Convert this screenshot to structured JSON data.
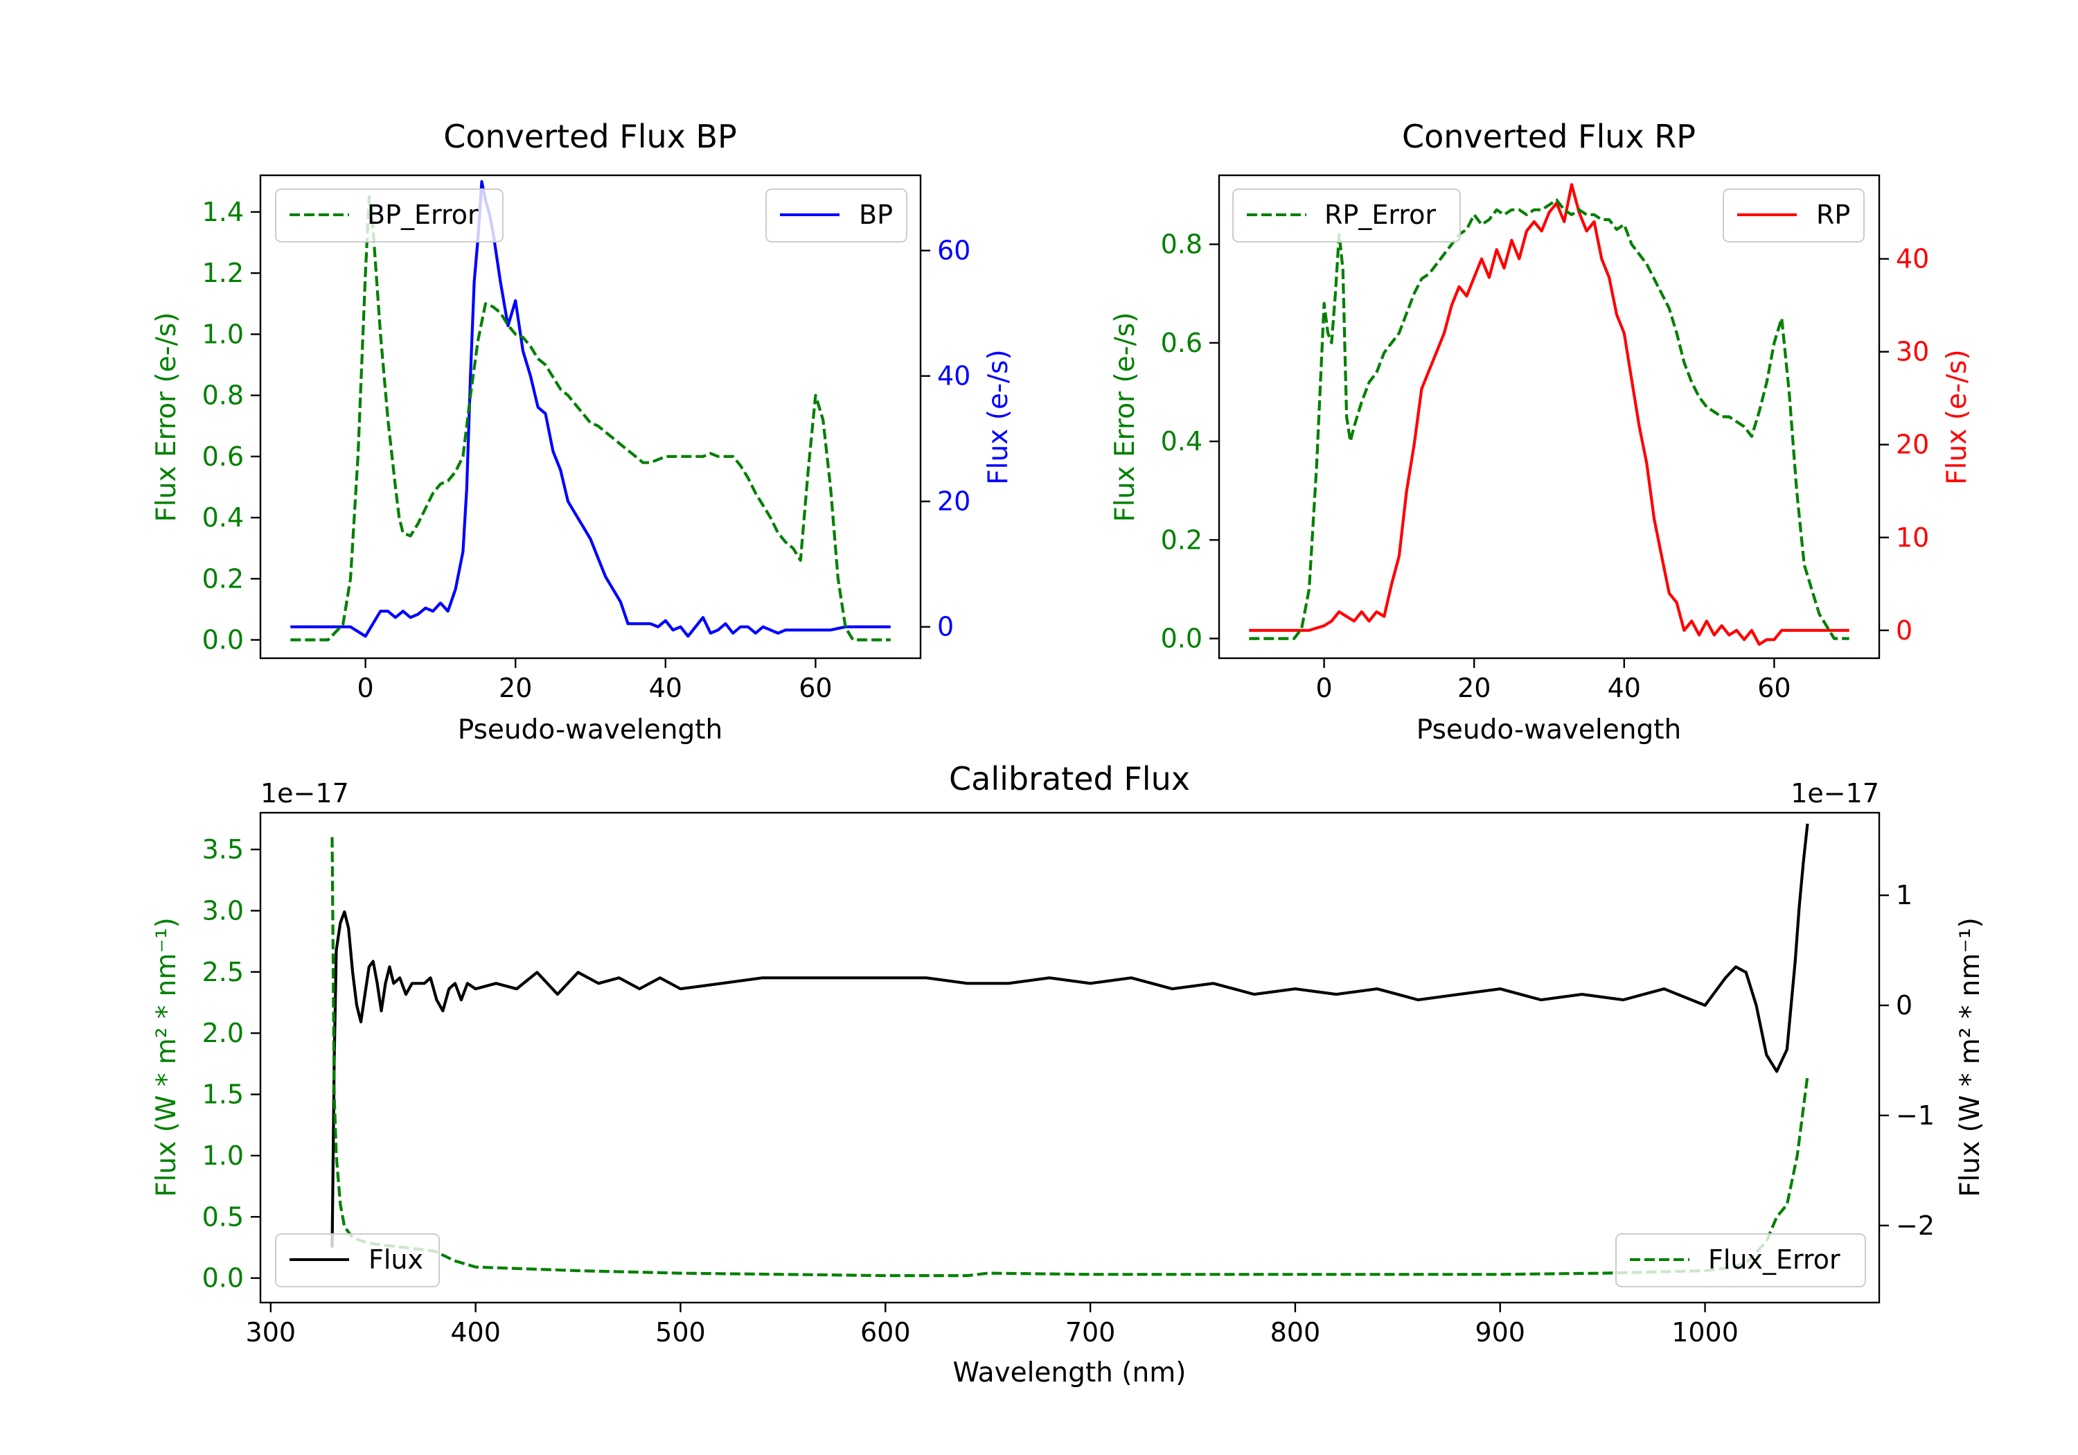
{
  "colors": {
    "error": "#008000",
    "bp": "#0000ff",
    "rp": "#ff0000",
    "flux": "#000000"
  },
  "chart_data": [
    {
      "type": "line",
      "title": "Converted Flux BP",
      "xlabel": "Pseudo-wavelength",
      "ylabel_left": "Flux Error (e-/s)",
      "ylabel_right": "Flux (e-/s)",
      "xlim": [
        -14,
        74
      ],
      "ylim_left": [
        -0.06,
        1.52
      ],
      "ylim_right": [
        -5,
        72
      ],
      "x_ticks": [
        "0",
        "20",
        "40",
        "60"
      ],
      "x_tick_values": [
        0,
        20,
        40,
        60
      ],
      "yleft_ticks": [
        "0.0",
        "0.2",
        "0.4",
        "0.6",
        "0.8",
        "1.0",
        "1.2",
        "1.4"
      ],
      "yleft_tick_values": [
        0,
        0.2,
        0.4,
        0.6,
        0.8,
        1.0,
        1.2,
        1.4
      ],
      "yright_ticks": [
        "0",
        "20",
        "40",
        "60"
      ],
      "yright_tick_values": [
        0,
        20,
        40,
        60
      ],
      "legend_left": "BP_Error",
      "legend_right": "BP",
      "series": [
        {
          "name": "BP_Error",
          "axis": "left",
          "style": "dashed",
          "color": "#008000",
          "x": [
            -10,
            -5,
            -3,
            -2,
            -1,
            0,
            0.5,
            1,
            2,
            3,
            4,
            4.5,
            5,
            6,
            7,
            8,
            9,
            10,
            11,
            12,
            13,
            14,
            15,
            16,
            17,
            18,
            19,
            20,
            21,
            22,
            23,
            24,
            25,
            26,
            27,
            28,
            29,
            30,
            31,
            32,
            33,
            34,
            35,
            36,
            37,
            38,
            39,
            40,
            41,
            42,
            43,
            44,
            45,
            46,
            47,
            48,
            49,
            50,
            51,
            52,
            53,
            54,
            55,
            56,
            57,
            58,
            59,
            60,
            61,
            62,
            63,
            64,
            65,
            66,
            68,
            70
          ],
          "y": [
            0,
            0,
            0.05,
            0.2,
            0.6,
            1.2,
            1.45,
            1.35,
            1.0,
            0.72,
            0.5,
            0.4,
            0.35,
            0.34,
            0.38,
            0.43,
            0.48,
            0.51,
            0.52,
            0.55,
            0.6,
            0.8,
            0.98,
            1.1,
            1.09,
            1.07,
            1.03,
            1.0,
            0.99,
            0.96,
            0.92,
            0.9,
            0.86,
            0.82,
            0.8,
            0.77,
            0.74,
            0.71,
            0.7,
            0.68,
            0.66,
            0.64,
            0.62,
            0.6,
            0.58,
            0.58,
            0.59,
            0.6,
            0.6,
            0.6,
            0.6,
            0.6,
            0.6,
            0.61,
            0.6,
            0.6,
            0.6,
            0.57,
            0.53,
            0.48,
            0.44,
            0.4,
            0.35,
            0.32,
            0.3,
            0.26,
            0.55,
            0.8,
            0.72,
            0.5,
            0.2,
            0.04,
            0,
            0,
            0,
            0
          ]
        },
        {
          "name": "BP",
          "axis": "right",
          "style": "solid",
          "color": "#0000ff",
          "x": [
            -10,
            -4,
            -2,
            0,
            1,
            2,
            3,
            4,
            5,
            6,
            7,
            8,
            9,
            10,
            11,
            12,
            12.5,
            13,
            13.5,
            14,
            14.5,
            15,
            15.5,
            16,
            16.5,
            17,
            18,
            19,
            20,
            21,
            22,
            23,
            24,
            25,
            26,
            27,
            28,
            29,
            30,
            31,
            32,
            33,
            34,
            35,
            36,
            37,
            38,
            39,
            40,
            41,
            42,
            43,
            44,
            45,
            46,
            47,
            48,
            49,
            50,
            51,
            52,
            53,
            54,
            55,
            56,
            58,
            60,
            62,
            64,
            66,
            68,
            70
          ],
          "y": [
            0,
            0,
            0,
            -1.5,
            0.5,
            2.5,
            2.5,
            1.5,
            2.5,
            1.5,
            2,
            3,
            2.5,
            3.8,
            2.5,
            6,
            9,
            12,
            22,
            40,
            55,
            62,
            71,
            68,
            66,
            63,
            55,
            48,
            52,
            44,
            40,
            35,
            34,
            28,
            25,
            20,
            18,
            16,
            14,
            11,
            8,
            6,
            4,
            0.5,
            0.5,
            0.5,
            0.5,
            0,
            1,
            -0.5,
            0,
            -1.5,
            0,
            1.5,
            -1,
            -0.5,
            0.5,
            -1,
            0,
            0,
            -1,
            0,
            -0.5,
            -1,
            -0.5,
            -0.5,
            -0.5,
            -0.5,
            0,
            0,
            0,
            0
          ]
        }
      ]
    },
    {
      "type": "line",
      "title": "Converted Flux RP",
      "xlabel": "Pseudo-wavelength",
      "ylabel_left": "Flux Error (e-/s)",
      "ylabel_right": "Flux (e-/s)",
      "xlim": [
        -14,
        74
      ],
      "ylim_left": [
        -0.04,
        0.94
      ],
      "ylim_right": [
        -3,
        49
      ],
      "x_ticks": [
        "0",
        "20",
        "40",
        "60"
      ],
      "x_tick_values": [
        0,
        20,
        40,
        60
      ],
      "yleft_ticks": [
        "0.0",
        "0.2",
        "0.4",
        "0.6",
        "0.8"
      ],
      "yleft_tick_values": [
        0,
        0.2,
        0.4,
        0.6,
        0.8
      ],
      "yright_ticks": [
        "0",
        "10",
        "20",
        "30",
        "40"
      ],
      "yright_tick_values": [
        0,
        10,
        20,
        30,
        40
      ],
      "legend_left": "RP_Error",
      "legend_right": "RP",
      "series": [
        {
          "name": "RP_Error",
          "axis": "left",
          "style": "dashed",
          "color": "#008000",
          "x": [
            -10,
            -4,
            -3,
            -2,
            -1,
            0,
            0.5,
            1,
            1.5,
            2,
            2.5,
            3,
            3.5,
            4,
            5,
            6,
            7,
            8,
            9,
            10,
            11,
            12,
            13,
            14,
            15,
            16,
            17,
            18,
            19,
            20,
            21,
            22,
            23,
            24,
            25,
            26,
            27,
            28,
            29,
            30,
            31,
            32,
            33,
            34,
            35,
            36,
            37,
            38,
            39,
            40,
            41,
            42,
            43,
            44,
            45,
            46,
            47,
            48,
            49,
            50,
            51,
            52,
            53,
            54,
            55,
            56,
            57,
            58,
            59,
            60,
            61,
            62,
            63,
            64,
            66,
            68,
            70
          ],
          "y": [
            0,
            0,
            0.02,
            0.1,
            0.35,
            0.68,
            0.62,
            0.6,
            0.7,
            0.82,
            0.75,
            0.45,
            0.4,
            0.43,
            0.48,
            0.52,
            0.54,
            0.58,
            0.6,
            0.62,
            0.66,
            0.7,
            0.73,
            0.74,
            0.76,
            0.78,
            0.8,
            0.82,
            0.83,
            0.86,
            0.84,
            0.85,
            0.87,
            0.86,
            0.87,
            0.87,
            0.86,
            0.87,
            0.87,
            0.88,
            0.89,
            0.87,
            0.86,
            0.87,
            0.86,
            0.86,
            0.85,
            0.85,
            0.83,
            0.84,
            0.8,
            0.78,
            0.76,
            0.73,
            0.7,
            0.67,
            0.62,
            0.56,
            0.52,
            0.49,
            0.47,
            0.46,
            0.45,
            0.45,
            0.44,
            0.43,
            0.41,
            0.46,
            0.52,
            0.6,
            0.65,
            0.5,
            0.3,
            0.15,
            0.05,
            0,
            0
          ]
        },
        {
          "name": "RP",
          "axis": "right",
          "style": "solid",
          "color": "#ff0000",
          "x": [
            -10,
            -2,
            0,
            1,
            2,
            3,
            4,
            5,
            6,
            7,
            8,
            9,
            10,
            11,
            12,
            13,
            14,
            15,
            16,
            17,
            18,
            19,
            20,
            21,
            22,
            23,
            24,
            25,
            26,
            27,
            28,
            29,
            30,
            31,
            32,
            33,
            34,
            35,
            36,
            37,
            38,
            39,
            40,
            41,
            42,
            43,
            44,
            45,
            46,
            47,
            48,
            49,
            50,
            51,
            52,
            53,
            54,
            55,
            56,
            57,
            58,
            59,
            60,
            61,
            62,
            64,
            66,
            68,
            70
          ],
          "y": [
            0,
            0,
            0.5,
            1,
            2,
            1.5,
            1,
            2,
            1,
            2,
            1.5,
            5,
            8,
            15,
            20,
            26,
            28,
            30,
            32,
            35,
            37,
            36,
            38,
            40,
            38,
            41,
            39,
            42,
            40,
            43,
            44,
            43,
            45,
            46,
            44,
            48,
            45,
            43,
            44,
            40,
            38,
            34,
            32,
            27,
            22,
            18,
            12,
            8,
            4,
            3,
            0,
            1,
            -0.5,
            1,
            -0.5,
            0.5,
            -0.5,
            0,
            -1,
            0,
            -1.5,
            -1,
            -1,
            0,
            0,
            0,
            0,
            0,
            0
          ]
        }
      ]
    },
    {
      "type": "line",
      "title": "Calibrated Flux",
      "xlabel": "Wavelength (nm)",
      "ylabel_left": "Flux (W * m² * nm⁻¹)",
      "ylabel_right": "Flux (W * m² * nm⁻¹)",
      "xlim": [
        295,
        1085
      ],
      "ylim_left": [
        -0.2,
        3.8
      ],
      "ylim_right": [
        -2.7,
        1.75
      ],
      "left_offset_label": "1e−17",
      "right_offset_label": "1e−17",
      "x_ticks": [
        "300",
        "400",
        "500",
        "600",
        "700",
        "800",
        "900",
        "1000"
      ],
      "x_tick_values": [
        300,
        400,
        500,
        600,
        700,
        800,
        900,
        1000
      ],
      "yleft_ticks": [
        "0.0",
        "0.5",
        "1.0",
        "1.5",
        "2.0",
        "2.5",
        "3.0",
        "3.5"
      ],
      "yleft_tick_values": [
        0,
        0.5,
        1.0,
        1.5,
        2.0,
        2.5,
        3.0,
        3.5
      ],
      "yright_ticks": [
        "−2",
        "−1",
        "0",
        "1"
      ],
      "yright_tick_values": [
        -2,
        -1,
        0,
        1
      ],
      "legend_left": "Flux",
      "legend_right": "Flux_Error",
      "series": [
        {
          "name": "Flux",
          "axis": "right",
          "style": "solid",
          "color": "#000000",
          "x": [
            330,
            331,
            332,
            334,
            336,
            338,
            340,
            342,
            344,
            346,
            348,
            350,
            352,
            354,
            356,
            358,
            360,
            363,
            366,
            369,
            372,
            375,
            378,
            381,
            384,
            387,
            390,
            393,
            396,
            400,
            410,
            420,
            430,
            440,
            450,
            460,
            470,
            480,
            490,
            500,
            520,
            540,
            560,
            580,
            600,
            620,
            640,
            660,
            680,
            700,
            720,
            740,
            760,
            780,
            800,
            820,
            840,
            860,
            880,
            900,
            920,
            940,
            960,
            980,
            1000,
            1010,
            1015,
            1020,
            1025,
            1030,
            1035,
            1040,
            1042,
            1044,
            1046,
            1048,
            1050
          ],
          "y": [
            -2.2,
            -0.5,
            0.5,
            0.75,
            0.85,
            0.7,
            0.3,
            0,
            -0.15,
            0.1,
            0.35,
            0.4,
            0.2,
            -0.05,
            0.2,
            0.35,
            0.2,
            0.25,
            0.1,
            0.2,
            0.2,
            0.2,
            0.25,
            0.05,
            -0.05,
            0.15,
            0.2,
            0.05,
            0.2,
            0.15,
            0.2,
            0.15,
            0.3,
            0.1,
            0.3,
            0.2,
            0.25,
            0.15,
            0.25,
            0.15,
            0.2,
            0.25,
            0.25,
            0.25,
            0.25,
            0.25,
            0.2,
            0.2,
            0.25,
            0.2,
            0.25,
            0.15,
            0.2,
            0.1,
            0.15,
            0.1,
            0.15,
            0.05,
            0.1,
            0.15,
            0.05,
            0.1,
            0.05,
            0.15,
            0,
            0.25,
            0.35,
            0.3,
            0,
            -0.45,
            -0.6,
            -0.4,
            0,
            0.4,
            0.9,
            1.3,
            1.65
          ]
        },
        {
          "name": "Flux_Error",
          "axis": "left",
          "style": "dashed",
          "color": "#008000",
          "x": [
            330,
            331,
            332,
            334,
            336,
            340,
            345,
            350,
            360,
            370,
            380,
            390,
            400,
            450,
            500,
            550,
            600,
            640,
            650,
            700,
            800,
            900,
            950,
            1000,
            1010,
            1020,
            1030,
            1035,
            1040,
            1045,
            1050
          ],
          "y": [
            3.6,
            1.5,
            1.0,
            0.6,
            0.42,
            0.33,
            0.3,
            0.28,
            0.26,
            0.24,
            0.22,
            0.14,
            0.09,
            0.06,
            0.04,
            0.03,
            0.02,
            0.02,
            0.04,
            0.03,
            0.03,
            0.03,
            0.04,
            0.06,
            0.08,
            0.12,
            0.3,
            0.5,
            0.6,
            1.0,
            1.65
          ]
        }
      ]
    }
  ]
}
